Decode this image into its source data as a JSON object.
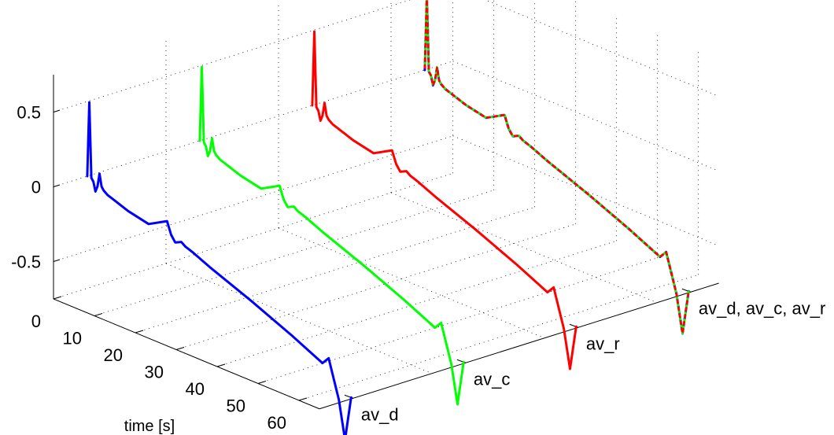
{
  "chart_data": {
    "type": "line",
    "projection": "3d",
    "grid": true,
    "x_axis": {
      "label": "time [s]",
      "ticks": [
        0,
        10,
        20,
        30,
        40,
        50,
        60
      ],
      "range": [
        0,
        65
      ]
    },
    "y_axis": {
      "categories": [
        "av_d",
        "av_c",
        "av_r",
        "av_d, av_c, av_r"
      ]
    },
    "z_axis": {
      "ticks": [
        -0.5,
        0,
        0.5
      ],
      "tick_labels": [
        "-0.5",
        "0",
        "0.5"
      ],
      "range": [
        -0.75,
        0.75
      ]
    },
    "series": [
      {
        "category_index": 0,
        "color": "#0000ff",
        "t": [
          0,
          0.5,
          1,
          1.5,
          2,
          2.5,
          3,
          3.5,
          4,
          5,
          6,
          7,
          8,
          10,
          15,
          19.5,
          20.5,
          21.5,
          23,
          24,
          25,
          26,
          30,
          40,
          50,
          57.5,
          59,
          60,
          61.5,
          63,
          64.5
        ],
        "values": [
          0,
          0.5,
          0.0,
          -0.02,
          -0.08,
          -0.04,
          0.05,
          -0.03,
          -0.05,
          -0.07,
          -0.08,
          -0.09,
          -0.1,
          -0.12,
          -0.15,
          -0.08,
          -0.16,
          -0.2,
          -0.18,
          -0.2,
          -0.21,
          -0.22,
          -0.27,
          -0.38,
          -0.5,
          -0.6,
          -0.55,
          -0.65,
          -0.8,
          -1.05,
          -0.75
        ]
      },
      {
        "category_index": 1,
        "color": "#00ff00",
        "t": [
          0,
          0.5,
          1,
          1.5,
          2,
          2.5,
          3,
          3.5,
          4,
          5,
          6,
          7,
          8,
          10,
          15,
          19.5,
          20.5,
          21.5,
          23,
          24,
          25,
          26,
          30,
          40,
          50,
          57.5,
          59,
          60,
          61.5,
          63,
          64.5
        ],
        "values": [
          0,
          0.5,
          0.0,
          -0.02,
          -0.08,
          -0.04,
          0.05,
          -0.03,
          -0.05,
          -0.07,
          -0.08,
          -0.09,
          -0.1,
          -0.12,
          -0.15,
          -0.08,
          -0.16,
          -0.2,
          -0.18,
          -0.2,
          -0.21,
          -0.22,
          -0.27,
          -0.38,
          -0.5,
          -0.6,
          -0.55,
          -0.65,
          -0.8,
          -1.05,
          -0.75
        ]
      },
      {
        "category_index": 2,
        "color": "#ff0000",
        "t": [
          0,
          0.5,
          1,
          1.5,
          2,
          2.5,
          3,
          3.5,
          4,
          5,
          6,
          7,
          8,
          10,
          15,
          19.5,
          20.5,
          21.5,
          23,
          24,
          25,
          26,
          30,
          40,
          50,
          57.5,
          59,
          60,
          61.5,
          63,
          64.5
        ],
        "values": [
          0,
          0.5,
          0.0,
          -0.02,
          -0.08,
          -0.04,
          0.05,
          -0.03,
          -0.05,
          -0.07,
          -0.08,
          -0.09,
          -0.1,
          -0.12,
          -0.15,
          -0.08,
          -0.16,
          -0.2,
          -0.18,
          -0.2,
          -0.21,
          -0.22,
          -0.27,
          -0.38,
          -0.5,
          -0.6,
          -0.55,
          -0.65,
          -0.8,
          -1.05,
          -0.75
        ]
      },
      {
        "category_index": 3,
        "color": "#808040",
        "overlaid_colors": [
          "#0000ff",
          "#00ff00",
          "#ff0000"
        ],
        "t": [
          0,
          0.5,
          1,
          1.5,
          2,
          2.5,
          3,
          3.5,
          4,
          5,
          6,
          7,
          8,
          10,
          15,
          19.5,
          20.5,
          21.5,
          23,
          24,
          25,
          26,
          30,
          40,
          50,
          57.5,
          59,
          60,
          61.5,
          63,
          64.5
        ],
        "values": [
          0,
          0.5,
          0.0,
          -0.02,
          -0.08,
          -0.04,
          0.05,
          -0.03,
          -0.05,
          -0.07,
          -0.08,
          -0.09,
          -0.1,
          -0.12,
          -0.15,
          -0.08,
          -0.16,
          -0.2,
          -0.18,
          -0.2,
          -0.21,
          -0.22,
          -0.27,
          -0.38,
          -0.5,
          -0.6,
          -0.55,
          -0.65,
          -0.8,
          -1.05,
          -0.75
        ]
      }
    ]
  }
}
